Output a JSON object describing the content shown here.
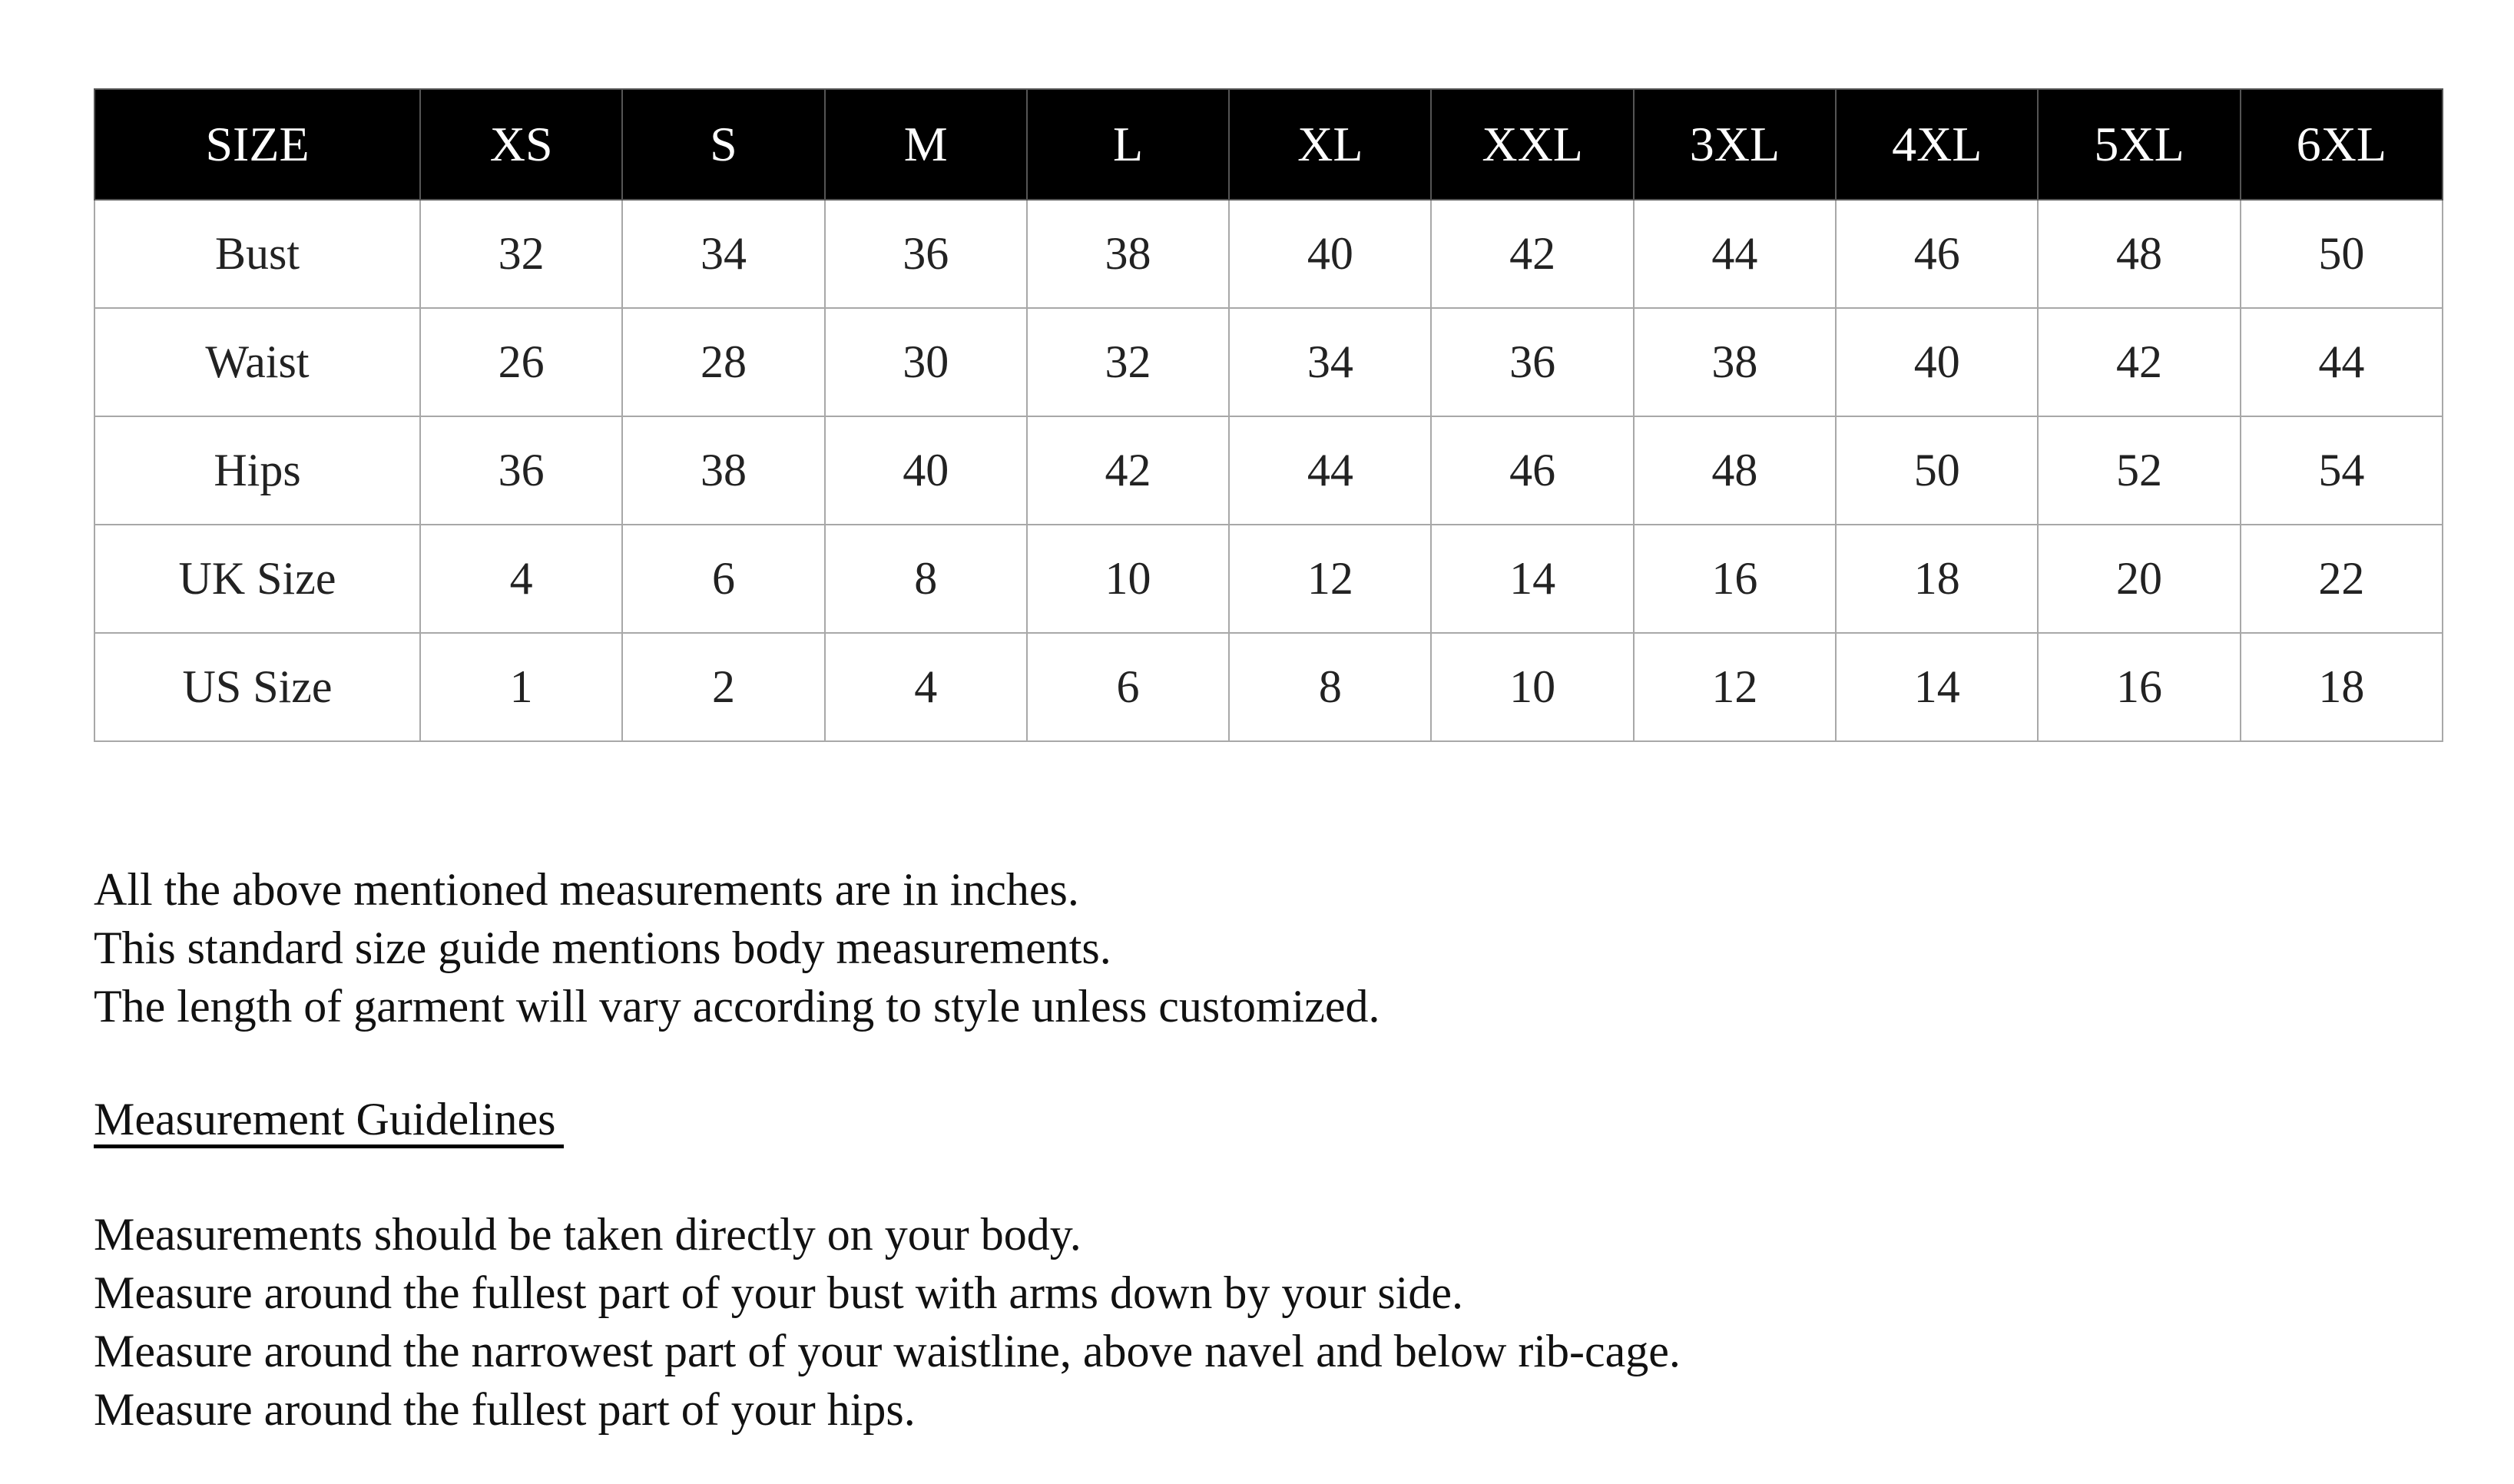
{
  "table": {
    "headers": [
      "SIZE",
      "XS",
      "S",
      "M",
      "L",
      "XL",
      "XXL",
      "3XL",
      "4XL",
      "5XL",
      "6XL"
    ],
    "rows": [
      [
        "Bust",
        "32",
        "34",
        "36",
        "38",
        "40",
        "42",
        "44",
        "46",
        "48",
        "50"
      ],
      [
        "Waist",
        "26",
        "28",
        "30",
        "32",
        "34",
        "36",
        "38",
        "40",
        "42",
        "44"
      ],
      [
        "Hips",
        "36",
        "38",
        "40",
        "42",
        "44",
        "46",
        "48",
        "50",
        "52",
        "54"
      ],
      [
        "UK Size",
        "4",
        "6",
        "8",
        "10",
        "12",
        "14",
        "16",
        "18",
        "20",
        "22"
      ],
      [
        "US Size",
        "1",
        "2",
        "4",
        "6",
        "8",
        "10",
        "12",
        "14",
        "16",
        "18"
      ]
    ]
  },
  "notes": [
    "All the above mentioned measurements are in inches.",
    "This standard size guide mentions body measurements.",
    "The length of garment will vary according to style unless customized."
  ],
  "guidelines": {
    "heading": "Measurement Guidelines",
    "items": [
      "Measurements should be taken directly on your body.",
      "Measure around the fullest part of your bust with arms down by your side.",
      "Measure around the narrowest part of your waistline, above navel and below rib-cage.",
      "Measure around the fullest part of your hips."
    ]
  }
}
